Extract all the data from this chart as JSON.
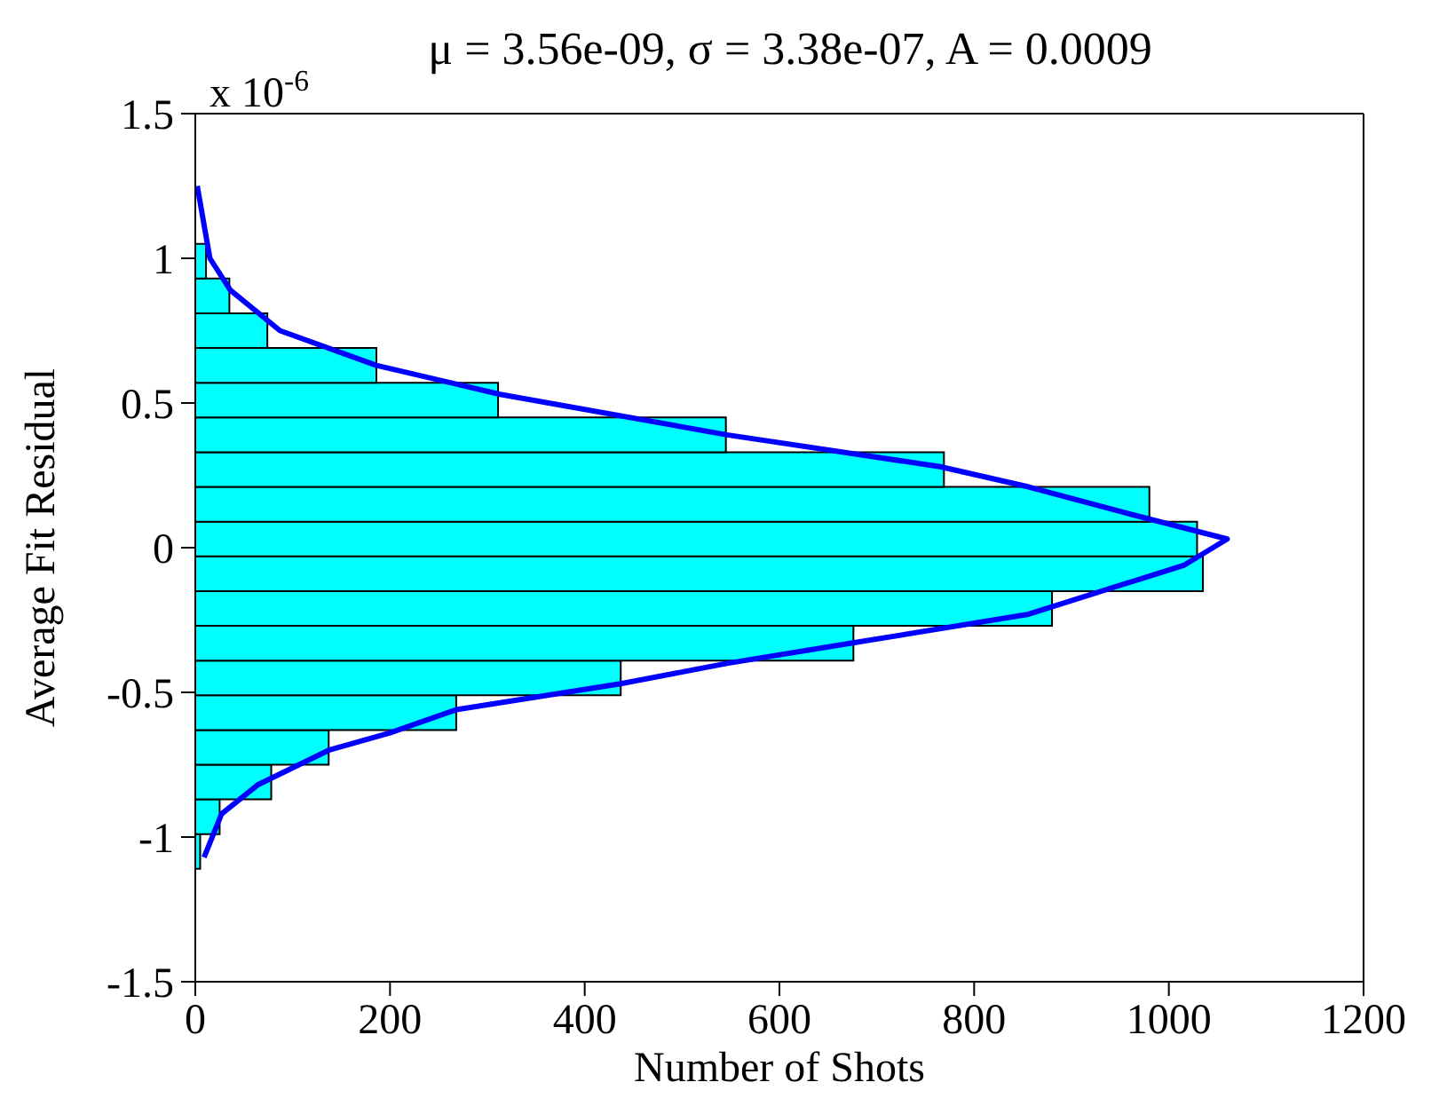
{
  "chart_data": {
    "type": "histogram",
    "orientation": "horizontal",
    "title": "μ = 3.56e-09, σ = 3.38e-07, A = 0.0009",
    "xlabel": "Number of Shots",
    "ylabel": "Average Fit Residual",
    "annotations": [
      "x 10$^{-6}$"
    ],
    "bins": [
      -1.11,
      -0.99,
      -0.87,
      -0.75,
      -0.63,
      -0.51,
      -0.39,
      -0.27,
      -0.15,
      -0.03,
      0.09,
      0.21,
      0.33,
      0.45,
      0.57,
      0.69,
      0.81,
      0.93,
      1.05
    ],
    "values": [
      5,
      25,
      78,
      137,
      268,
      437,
      676,
      880,
      1035,
      1029,
      980,
      769,
      545,
      311,
      186,
      74,
      35,
      11
    ],
    "color": "#00ffff",
    "series": [
      {
        "type": "line",
        "color": "#0000ff",
        "x": [
          1.25,
          1.0,
          0.89,
          0.75,
          0.63,
          0.53,
          0.39,
          0.28,
          0.21,
          0.12,
          0.03,
          -0.06,
          -0.23,
          -0.33,
          -0.4,
          -0.47,
          -0.56,
          -0.64,
          -0.7,
          -0.82,
          -0.92,
          -1.07
        ],
        "values": [
          2,
          15,
          36,
          87,
          186,
          313,
          546,
          765,
          856,
          956,
          1060,
          1016,
          856,
          674,
          546,
          437,
          268,
          200,
          137,
          64,
          27,
          9
        ]
      }
    ],
    "xlim": [
      0,
      1200
    ],
    "xticks": [
      0,
      200,
      400,
      600,
      800,
      1000,
      1200
    ],
    "ylim": [
      -1.5,
      1.5
    ],
    "yticks": [
      -1.5,
      -1,
      -0.5,
      0,
      0.5,
      1,
      1.5
    ]
  }
}
